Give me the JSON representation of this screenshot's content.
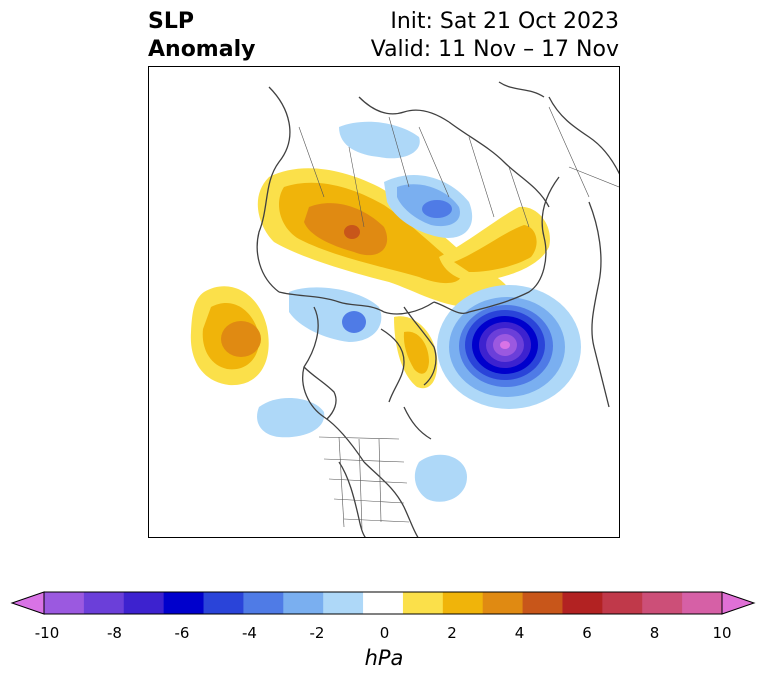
{
  "title": {
    "left_line1": "SLP",
    "left_line2": "Anomaly",
    "init": "Init: Sat 21 Oct 2023",
    "valid": "Valid: 11 Nov – 17 Nov"
  },
  "colorbar": {
    "unit": "hPa",
    "ticks": [
      "-10",
      "-8",
      "-6",
      "-4",
      "-2",
      "0",
      "2",
      "4",
      "6",
      "8",
      "10"
    ],
    "colors": [
      "#d973e6",
      "#9b59e0",
      "#6b3fd9",
      "#3d22cf",
      "#0000cc",
      "#2a44d9",
      "#4f7be6",
      "#7aaff0",
      "#aed8f8",
      "#ffffff",
      "#fbe04a",
      "#f0b40a",
      "#e08a12",
      "#c8561a",
      "#b22222",
      "#c0394a",
      "#cc4f78",
      "#d660a6",
      "#e070d6"
    ]
  },
  "map": {
    "projection": "north-polar-stereographic",
    "variable": "sea level pressure anomaly",
    "features": [
      "coastlines",
      "country-borders",
      "us-state-borders"
    ]
  }
}
